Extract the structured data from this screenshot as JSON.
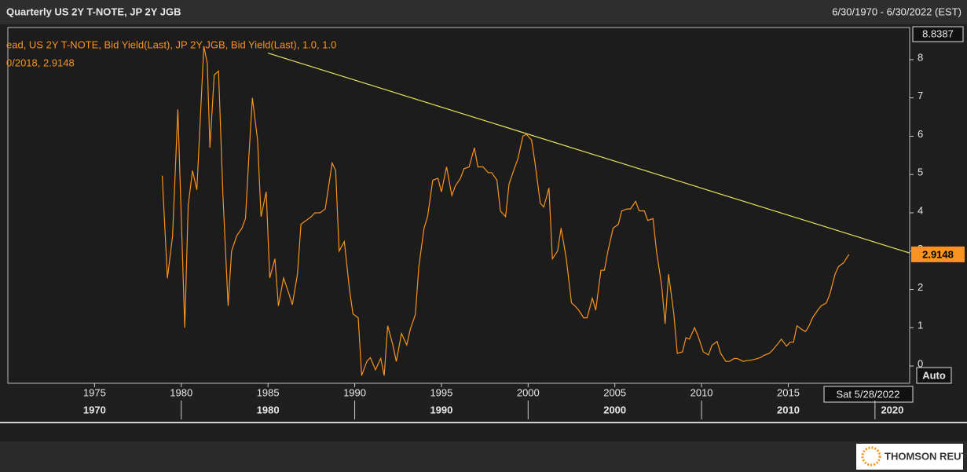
{
  "chart_data": {
    "type": "line",
    "title": "Quarterly US 2Y T-NOTE, JP 2Y JGB",
    "date_range": "6/30/1970 - 6/30/2022 (EST)",
    "legend_lines": [
      "ead, US 2Y T-NOTE, Bid Yield(Last), JP 2Y JGB, Bid Yield(Last),  1.0, 1.0",
      "0/2018, 2.9148"
    ],
    "color": "#f7931e",
    "x": [
      1978.9,
      1979.2,
      1979.5,
      1979.8,
      1980.2,
      1980.4,
      1980.65,
      1980.9,
      1981.1,
      1981.3,
      1981.5,
      1981.65,
      1981.9,
      1982.15,
      1982.4,
      1982.7,
      1982.9,
      1983.2,
      1983.5,
      1983.7,
      1983.9,
      1984.1,
      1984.4,
      1984.6,
      1984.9,
      1985.1,
      1985.4,
      1985.6,
      1985.9,
      1986.2,
      1986.4,
      1986.7,
      1986.9,
      1987.2,
      1987.5,
      1987.7,
      1988.0,
      1988.3,
      1988.7,
      1988.9,
      1989.1,
      1989.4,
      1989.7,
      1989.9,
      1990.2,
      1990.4,
      1990.7,
      1990.9,
      1991.2,
      1991.5,
      1991.7,
      1991.9,
      1992.2,
      1992.4,
      1992.7,
      1993.0,
      1993.2,
      1993.5,
      1993.7,
      1994.0,
      1994.2,
      1994.5,
      1994.8,
      1995.0,
      1995.3,
      1995.6,
      1995.8,
      1996.1,
      1996.3,
      1996.6,
      1996.9,
      1997.1,
      1997.4,
      1997.7,
      1997.9,
      1998.2,
      1998.4,
      1998.7,
      1998.9,
      1999.2,
      1999.4,
      1999.7,
      1999.9,
      2000.2,
      2000.4,
      2000.7,
      2000.9,
      2001.2,
      2001.4,
      2001.7,
      2001.9,
      2002.2,
      2002.5,
      2002.7,
      2002.9,
      2003.2,
      2003.4,
      2003.7,
      2003.9,
      2004.2,
      2004.4,
      2004.6,
      2004.9,
      2005.2,
      2005.4,
      2005.7,
      2005.9,
      2006.2,
      2006.4,
      2006.7,
      2006.9,
      2007.2,
      2007.4,
      2007.7,
      2007.9,
      2008.1,
      2008.4,
      2008.6,
      2008.9,
      2009.1,
      2009.3,
      2009.6,
      2009.8,
      2010.1,
      2010.4,
      2010.6,
      2010.9,
      2011.1,
      2011.4,
      2011.6,
      2011.9,
      2012.1,
      2012.4,
      2012.6,
      2012.9,
      2013.1,
      2013.4,
      2013.6,
      2013.9,
      2014.1,
      2014.4,
      2014.6,
      2014.9,
      2015.1,
      2015.3,
      2015.5,
      2015.8,
      2016.0,
      2016.2,
      2016.4,
      2016.7,
      2016.9,
      2017.2,
      2017.4,
      2017.7,
      2017.9,
      2018.2,
      2018.5
    ],
    "values": [
      4.97,
      2.29,
      3.4,
      6.7,
      1.0,
      4.2,
      5.1,
      4.6,
      6.5,
      8.35,
      7.9,
      5.7,
      7.6,
      7.7,
      4.45,
      1.57,
      3.0,
      3.4,
      3.6,
      3.85,
      5.5,
      7.0,
      5.9,
      3.9,
      4.55,
      2.3,
      2.8,
      1.57,
      2.3,
      1.9,
      1.6,
      2.4,
      3.7,
      3.8,
      3.9,
      4.0,
      4.0,
      4.1,
      5.3,
      5.1,
      3.0,
      3.25,
      2.0,
      1.36,
      1.26,
      -0.25,
      0.12,
      0.22,
      -0.1,
      0.2,
      -0.25,
      1.05,
      0.55,
      0.12,
      0.85,
      0.55,
      0.95,
      1.35,
      2.6,
      3.6,
      3.9,
      4.85,
      4.9,
      4.55,
      5.2,
      4.45,
      4.7,
      4.9,
      5.15,
      5.2,
      5.7,
      5.2,
      5.2,
      5.05,
      5.05,
      4.85,
      4.05,
      3.9,
      4.75,
      5.15,
      5.4,
      6.0,
      6.05,
      5.9,
      5.3,
      4.25,
      4.15,
      4.65,
      2.8,
      3.0,
      3.6,
      2.8,
      1.65,
      1.57,
      1.47,
      1.26,
      1.26,
      1.77,
      1.46,
      2.5,
      2.5,
      3.0,
      3.6,
      3.7,
      4.05,
      4.1,
      4.1,
      4.3,
      4.05,
      4.05,
      3.8,
      3.85,
      3.0,
      2.1,
      1.1,
      2.4,
      1.36,
      0.33,
      0.37,
      0.74,
      0.7,
      1.0,
      0.78,
      0.37,
      0.29,
      0.54,
      0.64,
      0.33,
      0.12,
      0.12,
      0.2,
      0.19,
      0.12,
      0.14,
      0.16,
      0.18,
      0.22,
      0.28,
      0.33,
      0.42,
      0.58,
      0.7,
      0.52,
      0.62,
      0.62,
      1.05,
      0.95,
      0.9,
      1.05,
      1.26,
      1.46,
      1.57,
      1.65,
      1.88,
      2.4,
      2.6,
      2.7,
      2.9148
    ],
    "trendline": {
      "color": "#e6e05a",
      "x": [
        1985,
        2022
      ],
      "y": [
        8.17,
        2.95
      ]
    },
    "xlim": [
      1970,
      2022
    ],
    "ylim": [
      -0.45,
      8.8387
    ],
    "xticks": [
      1975,
      1980,
      1985,
      1990,
      1995,
      2000,
      2005,
      2010,
      2015
    ],
    "decades": [
      1970,
      1980,
      1990,
      2000,
      2010,
      2020
    ],
    "yticks": [
      0,
      1,
      2,
      3,
      4,
      5,
      6,
      7,
      8
    ],
    "cursor_date": "Sat 5/28/2022",
    "scale_mode": "Auto",
    "logo": "THOMSON REUTERS"
  }
}
